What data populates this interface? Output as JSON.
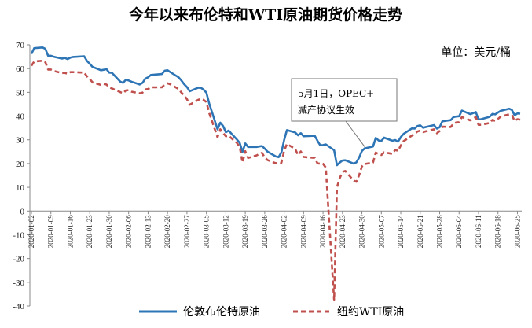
{
  "chart_data": {
    "type": "line",
    "title": "今年以来布伦特和WTI原油期货价格走势",
    "unit_label": "单位：美元/桶",
    "ylim": [
      -40,
      70
    ],
    "yticks": [
      -40,
      -30,
      -20,
      -10,
      0,
      10,
      20,
      30,
      40,
      50,
      60,
      70
    ],
    "grid": false,
    "legend_position": "bottom",
    "x_tick_labels": [
      "2020-01-02",
      "2020-01-09",
      "2020-01-16",
      "2020-01-23",
      "2020-01-30",
      "2020-02-06",
      "2020-02-13",
      "2020-02-20",
      "2020-02-27",
      "2020-03-05",
      "2020-03-12",
      "2020-03-19",
      "2020-03-26",
      "2020-04-02",
      "2020-04-09",
      "2020-04-16",
      "2020-04-23",
      "2020-04-30",
      "2020-05-07",
      "2020-05-14",
      "2020-05-21",
      "2020-05-28",
      "2020-06-04",
      "2020-06-11",
      "2020-06-18",
      "2020-06-25"
    ],
    "annotation": {
      "line1": "5月1日，OPEC+",
      "line2": "减产协议生效",
      "date": "2020-05-01"
    },
    "series": [
      {
        "name": "伦敦布伦特原油",
        "color": "#2e75b6",
        "dash": false,
        "points": [
          [
            "2020-01-02",
            66.2
          ],
          [
            "2020-01-03",
            68.6
          ],
          [
            "2020-01-06",
            68.9
          ],
          [
            "2020-01-07",
            68.3
          ],
          [
            "2020-01-08",
            65.4
          ],
          [
            "2020-01-09",
            65.4
          ],
          [
            "2020-01-10",
            65.0
          ],
          [
            "2020-01-13",
            64.2
          ],
          [
            "2020-01-14",
            64.5
          ],
          [
            "2020-01-15",
            64.0
          ],
          [
            "2020-01-16",
            64.6
          ],
          [
            "2020-01-17",
            64.9
          ],
          [
            "2020-01-21",
            65.2
          ],
          [
            "2020-01-22",
            63.2
          ],
          [
            "2020-01-23",
            62.0
          ],
          [
            "2020-01-24",
            60.7
          ],
          [
            "2020-01-27",
            59.3
          ],
          [
            "2020-01-28",
            59.5
          ],
          [
            "2020-01-29",
            59.8
          ],
          [
            "2020-01-30",
            58.3
          ],
          [
            "2020-01-31",
            58.2
          ],
          [
            "2020-02-03",
            54.5
          ],
          [
            "2020-02-04",
            54.0
          ],
          [
            "2020-02-05",
            55.3
          ],
          [
            "2020-02-06",
            55.0
          ],
          [
            "2020-02-07",
            54.5
          ],
          [
            "2020-02-10",
            53.3
          ],
          [
            "2020-02-11",
            54.0
          ],
          [
            "2020-02-12",
            55.8
          ],
          [
            "2020-02-13",
            56.3
          ],
          [
            "2020-02-14",
            57.3
          ],
          [
            "2020-02-18",
            57.7
          ],
          [
            "2020-02-19",
            59.1
          ],
          [
            "2020-02-20",
            59.3
          ],
          [
            "2020-02-21",
            58.5
          ],
          [
            "2020-02-24",
            56.3
          ],
          [
            "2020-02-25",
            55.0
          ],
          [
            "2020-02-26",
            53.4
          ],
          [
            "2020-02-27",
            52.2
          ],
          [
            "2020-02-28",
            50.5
          ],
          [
            "2020-03-02",
            51.9
          ],
          [
            "2020-03-03",
            51.9
          ],
          [
            "2020-03-04",
            51.1
          ],
          [
            "2020-03-05",
            49.9
          ],
          [
            "2020-03-06",
            45.3
          ],
          [
            "2020-03-09",
            34.4
          ],
          [
            "2020-03-10",
            37.2
          ],
          [
            "2020-03-11",
            35.8
          ],
          [
            "2020-03-12",
            33.2
          ],
          [
            "2020-03-13",
            33.9
          ],
          [
            "2020-03-16",
            30.1
          ],
          [
            "2020-03-17",
            28.7
          ],
          [
            "2020-03-18",
            24.9
          ],
          [
            "2020-03-19",
            28.5
          ],
          [
            "2020-03-20",
            27.0
          ],
          [
            "2020-03-23",
            27.0
          ],
          [
            "2020-03-24",
            27.2
          ],
          [
            "2020-03-25",
            27.4
          ],
          [
            "2020-03-26",
            26.3
          ],
          [
            "2020-03-27",
            25.0
          ],
          [
            "2020-03-30",
            23.0
          ],
          [
            "2020-03-31",
            22.7
          ],
          [
            "2020-04-01",
            24.7
          ],
          [
            "2020-04-02",
            29.9
          ],
          [
            "2020-04-03",
            34.1
          ],
          [
            "2020-04-06",
            33.1
          ],
          [
            "2020-04-07",
            31.9
          ],
          [
            "2020-04-08",
            32.8
          ],
          [
            "2020-04-09",
            31.5
          ],
          [
            "2020-04-13",
            31.7
          ],
          [
            "2020-04-14",
            29.6
          ],
          [
            "2020-04-15",
            27.7
          ],
          [
            "2020-04-16",
            27.8
          ],
          [
            "2020-04-17",
            28.1
          ],
          [
            "2020-04-20",
            25.6
          ],
          [
            "2020-04-21",
            19.3
          ],
          [
            "2020-04-22",
            20.4
          ],
          [
            "2020-04-23",
            21.3
          ],
          [
            "2020-04-24",
            21.4
          ],
          [
            "2020-04-27",
            20.0
          ],
          [
            "2020-04-28",
            20.5
          ],
          [
            "2020-04-29",
            22.5
          ],
          [
            "2020-04-30",
            25.3
          ],
          [
            "2020-05-01",
            26.4
          ],
          [
            "2020-05-04",
            27.2
          ],
          [
            "2020-05-05",
            30.8
          ],
          [
            "2020-05-06",
            29.7
          ],
          [
            "2020-05-07",
            29.5
          ],
          [
            "2020-05-08",
            30.9
          ],
          [
            "2020-05-11",
            29.6
          ],
          [
            "2020-05-12",
            29.9
          ],
          [
            "2020-05-13",
            29.2
          ],
          [
            "2020-05-14",
            31.1
          ],
          [
            "2020-05-15",
            32.5
          ],
          [
            "2020-05-18",
            34.8
          ],
          [
            "2020-05-19",
            34.7
          ],
          [
            "2020-05-20",
            35.8
          ],
          [
            "2020-05-21",
            36.1
          ],
          [
            "2020-05-22",
            35.1
          ],
          [
            "2020-05-26",
            36.2
          ],
          [
            "2020-05-27",
            34.7
          ],
          [
            "2020-05-28",
            35.3
          ],
          [
            "2020-05-29",
            37.8
          ],
          [
            "2020-06-01",
            38.3
          ],
          [
            "2020-06-02",
            39.6
          ],
          [
            "2020-06-03",
            39.8
          ],
          [
            "2020-06-04",
            39.9
          ],
          [
            "2020-06-05",
            42.3
          ],
          [
            "2020-06-08",
            40.8
          ],
          [
            "2020-06-09",
            41.2
          ],
          [
            "2020-06-10",
            41.7
          ],
          [
            "2020-06-11",
            38.6
          ],
          [
            "2020-06-12",
            38.7
          ],
          [
            "2020-06-15",
            39.7
          ],
          [
            "2020-06-16",
            40.9
          ],
          [
            "2020-06-17",
            40.7
          ],
          [
            "2020-06-18",
            41.5
          ],
          [
            "2020-06-19",
            42.2
          ],
          [
            "2020-06-22",
            43.1
          ],
          [
            "2020-06-23",
            42.6
          ],
          [
            "2020-06-24",
            40.3
          ],
          [
            "2020-06-25",
            41.1
          ],
          [
            "2020-06-26",
            41.0
          ]
        ]
      },
      {
        "name": "纽约WTI原油",
        "color": "#c0504d",
        "dash": true,
        "points": [
          [
            "2020-01-02",
            61.2
          ],
          [
            "2020-01-03",
            63.0
          ],
          [
            "2020-01-06",
            63.3
          ],
          [
            "2020-01-07",
            62.7
          ],
          [
            "2020-01-08",
            59.6
          ],
          [
            "2020-01-09",
            59.6
          ],
          [
            "2020-01-10",
            59.0
          ],
          [
            "2020-01-13",
            58.1
          ],
          [
            "2020-01-14",
            58.2
          ],
          [
            "2020-01-15",
            57.8
          ],
          [
            "2020-01-16",
            58.5
          ],
          [
            "2020-01-17",
            58.5
          ],
          [
            "2020-01-21",
            58.3
          ],
          [
            "2020-01-22",
            56.7
          ],
          [
            "2020-01-23",
            55.6
          ],
          [
            "2020-01-24",
            54.2
          ],
          [
            "2020-01-27",
            53.1
          ],
          [
            "2020-01-28",
            53.5
          ],
          [
            "2020-01-29",
            53.3
          ],
          [
            "2020-01-30",
            52.1
          ],
          [
            "2020-01-31",
            51.6
          ],
          [
            "2020-02-03",
            50.1
          ],
          [
            "2020-02-04",
            49.6
          ],
          [
            "2020-02-05",
            50.8
          ],
          [
            "2020-02-06",
            50.9
          ],
          [
            "2020-02-07",
            50.3
          ],
          [
            "2020-02-10",
            49.6
          ],
          [
            "2020-02-11",
            49.9
          ],
          [
            "2020-02-12",
            51.2
          ],
          [
            "2020-02-13",
            51.4
          ],
          [
            "2020-02-14",
            52.1
          ],
          [
            "2020-02-18",
            52.1
          ],
          [
            "2020-02-19",
            53.3
          ],
          [
            "2020-02-20",
            53.8
          ],
          [
            "2020-02-21",
            53.4
          ],
          [
            "2020-02-24",
            51.4
          ],
          [
            "2020-02-25",
            49.9
          ],
          [
            "2020-02-26",
            48.7
          ],
          [
            "2020-02-27",
            47.1
          ],
          [
            "2020-02-28",
            44.8
          ],
          [
            "2020-03-02",
            46.8
          ],
          [
            "2020-03-03",
            47.2
          ],
          [
            "2020-03-04",
            46.8
          ],
          [
            "2020-03-05",
            45.9
          ],
          [
            "2020-03-06",
            41.3
          ],
          [
            "2020-03-09",
            31.1
          ],
          [
            "2020-03-10",
            34.4
          ],
          [
            "2020-03-11",
            32.9
          ],
          [
            "2020-03-12",
            31.5
          ],
          [
            "2020-03-13",
            31.7
          ],
          [
            "2020-03-16",
            28.7
          ],
          [
            "2020-03-17",
            26.9
          ],
          [
            "2020-03-18",
            20.4
          ],
          [
            "2020-03-19",
            25.2
          ],
          [
            "2020-03-20",
            22.4
          ],
          [
            "2020-03-23",
            23.4
          ],
          [
            "2020-03-24",
            24.0
          ],
          [
            "2020-03-25",
            24.5
          ],
          [
            "2020-03-26",
            22.6
          ],
          [
            "2020-03-27",
            21.5
          ],
          [
            "2020-03-30",
            20.1
          ],
          [
            "2020-03-31",
            20.5
          ],
          [
            "2020-04-01",
            20.3
          ],
          [
            "2020-04-02",
            25.3
          ],
          [
            "2020-04-03",
            28.3
          ],
          [
            "2020-04-06",
            26.1
          ],
          [
            "2020-04-07",
            23.6
          ],
          [
            "2020-04-08",
            25.1
          ],
          [
            "2020-04-09",
            22.8
          ],
          [
            "2020-04-13",
            22.4
          ],
          [
            "2020-04-14",
            20.1
          ],
          [
            "2020-04-15",
            19.9
          ],
          [
            "2020-04-16",
            19.9
          ],
          [
            "2020-04-17",
            18.3
          ],
          [
            "2020-04-20",
            -37.6
          ],
          [
            "2020-04-21",
            10.0
          ],
          [
            "2020-04-22",
            13.8
          ],
          [
            "2020-04-23",
            16.5
          ],
          [
            "2020-04-24",
            16.9
          ],
          [
            "2020-04-27",
            12.8
          ],
          [
            "2020-04-28",
            12.3
          ],
          [
            "2020-04-29",
            15.1
          ],
          [
            "2020-04-30",
            18.8
          ],
          [
            "2020-05-01",
            19.8
          ],
          [
            "2020-05-04",
            20.4
          ],
          [
            "2020-05-05",
            24.6
          ],
          [
            "2020-05-06",
            23.99
          ],
          [
            "2020-05-07",
            23.6
          ],
          [
            "2020-05-08",
            24.7
          ],
          [
            "2020-05-11",
            24.1
          ],
          [
            "2020-05-12",
            25.8
          ],
          [
            "2020-05-13",
            25.3
          ],
          [
            "2020-05-14",
            27.6
          ],
          [
            "2020-05-15",
            29.4
          ],
          [
            "2020-05-18",
            31.8
          ],
          [
            "2020-05-19",
            32.5
          ],
          [
            "2020-05-20",
            33.5
          ],
          [
            "2020-05-21",
            33.9
          ],
          [
            "2020-05-22",
            33.3
          ],
          [
            "2020-05-26",
            34.4
          ],
          [
            "2020-05-27",
            32.8
          ],
          [
            "2020-05-28",
            33.7
          ],
          [
            "2020-05-29",
            35.5
          ],
          [
            "2020-06-01",
            35.4
          ],
          [
            "2020-06-02",
            36.8
          ],
          [
            "2020-06-03",
            37.3
          ],
          [
            "2020-06-04",
            37.4
          ],
          [
            "2020-06-05",
            39.6
          ],
          [
            "2020-06-08",
            38.2
          ],
          [
            "2020-06-09",
            38.9
          ],
          [
            "2020-06-10",
            39.6
          ],
          [
            "2020-06-11",
            36.3
          ],
          [
            "2020-06-12",
            36.3
          ],
          [
            "2020-06-15",
            37.1
          ],
          [
            "2020-06-16",
            38.4
          ],
          [
            "2020-06-17",
            37.96
          ],
          [
            "2020-06-18",
            38.8
          ],
          [
            "2020-06-19",
            39.8
          ],
          [
            "2020-06-22",
            40.7
          ],
          [
            "2020-06-23",
            40.4
          ],
          [
            "2020-06-24",
            38.0
          ],
          [
            "2020-06-25",
            38.7
          ],
          [
            "2020-06-26",
            38.5
          ]
        ]
      }
    ]
  }
}
